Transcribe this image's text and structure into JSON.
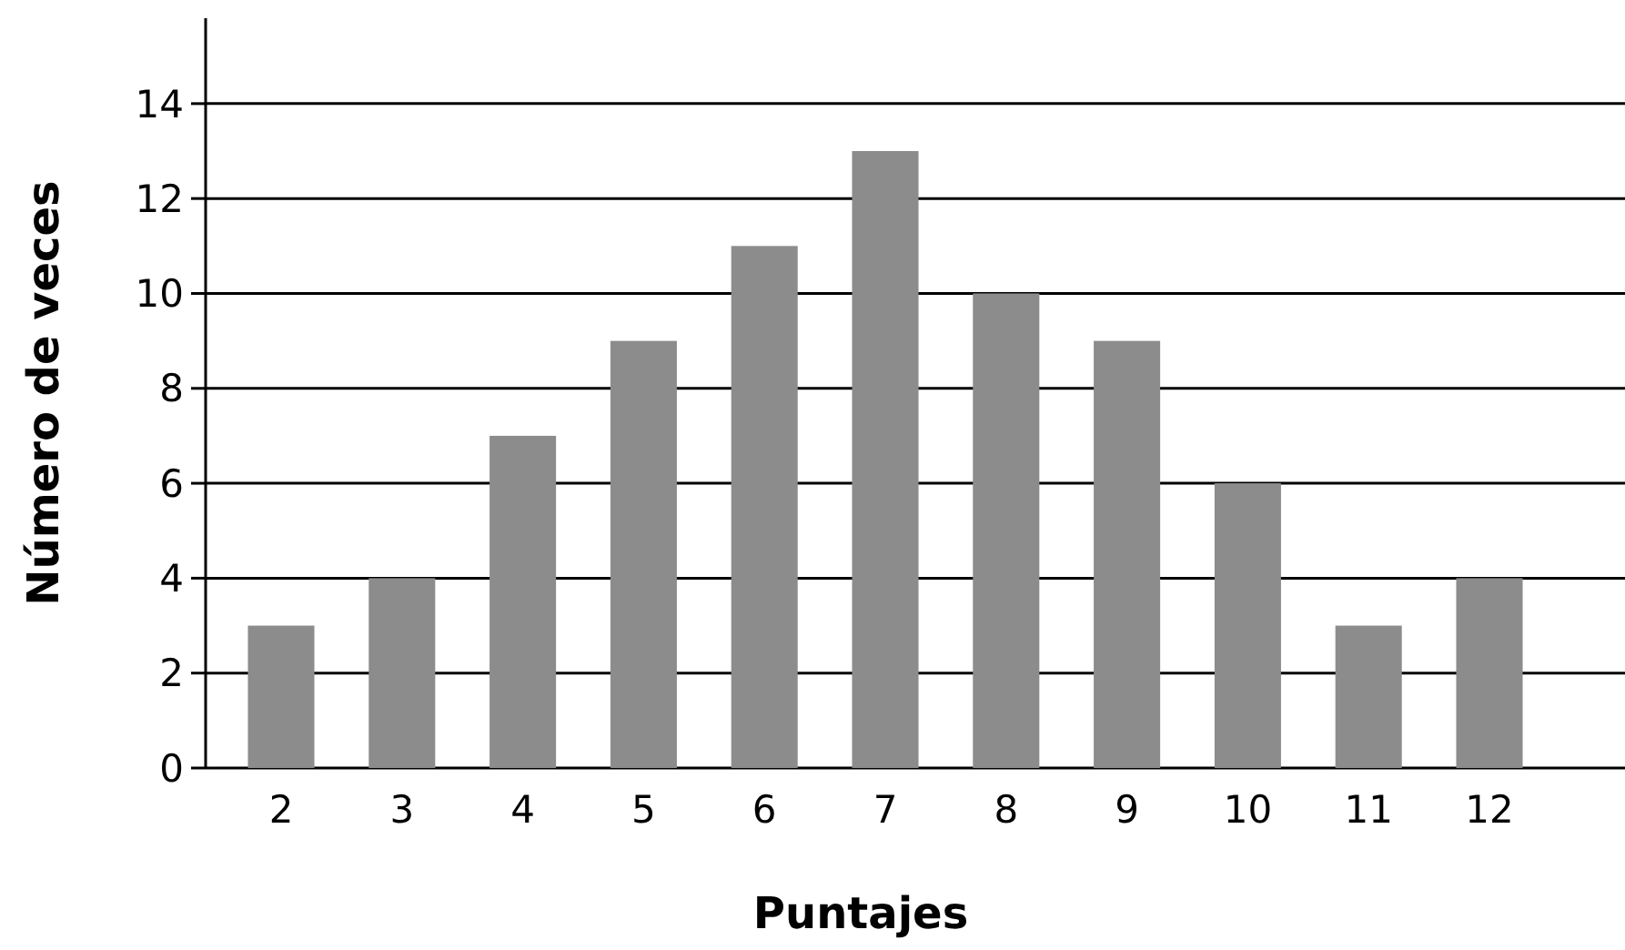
{
  "chart_data": {
    "type": "bar",
    "xlabel": "Puntajes",
    "ylabel": "Número de veces",
    "categories": [
      "2",
      "3",
      "4",
      "5",
      "6",
      "7",
      "8",
      "9",
      "10",
      "11",
      "12"
    ],
    "values": [
      3,
      4,
      7,
      9,
      11,
      13,
      10,
      9,
      6,
      3,
      4
    ],
    "color": "#8c8c8c",
    "ylim": [
      0,
      15.8
    ],
    "yticks": [
      0,
      2,
      4,
      6,
      8,
      10,
      12,
      14
    ],
    "grid": "y"
  }
}
